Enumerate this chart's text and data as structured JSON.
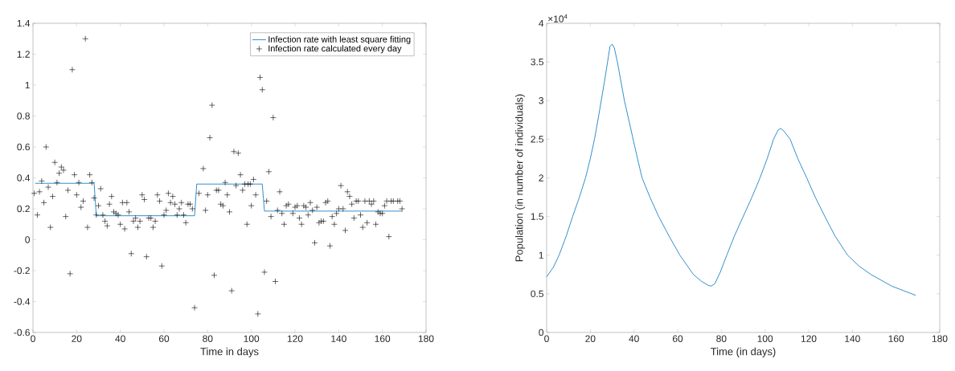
{
  "chart_data": [
    {
      "type": "scatter",
      "xlabel": "Time in days",
      "xlim": [
        0,
        180
      ],
      "xticks": [
        0,
        20,
        40,
        60,
        80,
        100,
        120,
        140,
        160,
        180
      ],
      "ylim": [
        -0.6,
        1.4
      ],
      "yticks": [
        -0.6,
        -0.4,
        -0.2,
        0,
        0.2,
        0.4,
        0.6,
        0.8,
        1,
        1.2,
        1.4
      ],
      "legend": "top right",
      "series": [
        {
          "name": "Infection rate with least square fitting",
          "type": "line",
          "color": "#0072bd",
          "marker": "none",
          "x": [
            1,
            28,
            29,
            74,
            75,
            105,
            106,
            169
          ],
          "values": [
            0.365,
            0.365,
            0.155,
            0.155,
            0.36,
            0.36,
            0.185,
            0.185
          ]
        },
        {
          "name": "Infection rate calculated every day",
          "type": "scatter",
          "color": "#000000",
          "marker": "cross",
          "x": [
            0.6,
            2,
            3,
            4,
            5,
            6,
            7,
            8,
            9,
            10,
            11,
            12,
            13,
            14,
            15,
            16,
            17,
            18,
            19,
            20,
            21,
            22,
            23,
            24,
            25,
            26,
            27,
            28,
            29,
            30,
            31,
            32,
            33,
            34,
            35,
            36,
            37,
            38,
            39,
            40,
            41,
            42,
            43,
            44,
            45,
            46,
            47,
            48,
            49,
            50,
            51,
            52,
            53,
            54,
            55,
            56,
            57,
            58,
            59,
            60,
            61,
            62,
            63,
            64,
            65,
            66,
            67,
            68,
            69,
            70,
            71,
            72,
            73,
            74,
            76,
            78,
            79,
            80,
            81,
            82,
            83,
            84,
            85,
            86,
            87,
            88,
            89,
            90,
            91,
            92,
            93,
            94,
            95,
            96,
            97,
            98,
            98.5,
            99.5,
            100,
            101,
            102,
            103,
            104,
            105,
            106,
            107,
            108,
            109,
            110,
            111,
            112,
            113,
            114,
            115,
            116,
            117,
            119,
            120,
            121,
            122,
            123,
            124,
            125,
            126,
            127,
            128,
            129,
            130,
            131,
            132,
            133,
            134,
            135,
            136,
            137,
            138,
            139,
            140,
            141,
            142,
            143,
            144,
            145,
            146,
            147,
            148,
            149,
            150,
            151,
            152,
            153,
            154,
            155,
            156,
            157,
            158,
            159,
            160,
            161,
            162,
            163,
            164,
            165,
            167,
            168,
            169
          ],
          "values": [
            0.3,
            0.16,
            0.31,
            0.38,
            0.24,
            0.6,
            0.34,
            0.08,
            0.28,
            0.5,
            0.37,
            0.43,
            0.47,
            0.45,
            0.15,
            0.32,
            -0.22,
            1.1,
            0.42,
            0.29,
            0.37,
            0.21,
            0.25,
            1.3,
            0.08,
            0.42,
            0.37,
            0.27,
            0.16,
            0.22,
            0.33,
            0.16,
            0.12,
            0.09,
            0.23,
            0.28,
            0.18,
            0.17,
            0.16,
            0.1,
            0.24,
            0.07,
            0.24,
            0.18,
            -0.09,
            0.12,
            0.14,
            0.08,
            0.12,
            0.29,
            0.26,
            -0.11,
            0.14,
            0.14,
            0.08,
            0.12,
            0.29,
            0.25,
            -0.17,
            0.16,
            0.19,
            0.3,
            0.24,
            0.28,
            0.23,
            0.16,
            0.2,
            0.24,
            0.16,
            0.11,
            0.23,
            0.23,
            0.2,
            -0.44,
            0.3,
            0.46,
            0.19,
            0.29,
            0.66,
            0.87,
            -0.23,
            0.32,
            0.32,
            0.23,
            0.22,
            0.37,
            0.29,
            0.18,
            -0.33,
            0.57,
            0.35,
            0.56,
            0.42,
            0.32,
            0.36,
            0.1,
            0.36,
            0.36,
            0.22,
            0.39,
            0.29,
            -0.48,
            1.05,
            0.97,
            -0.21,
            0.25,
            0.44,
            0.15,
            0.79,
            -0.27,
            0.19,
            0.31,
            0.17,
            0.1,
            0.22,
            0.23,
            0.17,
            0.21,
            0.22,
            0.14,
            0.1,
            0.22,
            0.21,
            0.16,
            0.24,
            0.19,
            -0.02,
            0.21,
            0.11,
            0.12,
            0.12,
            0.24,
            0.25,
            -0.04,
            0.15,
            0.1,
            0.17,
            0.2,
            0.35,
            0.2,
            0.06,
            0.31,
            0.28,
            0.23,
            0.14,
            0.25,
            0.25,
            0.16,
            0.08,
            0.25,
            0.11,
            0.25,
            0.23,
            0.25,
            0.1,
            0.18,
            0.17,
            0.17,
            0.22,
            0.25,
            0.02,
            0.25,
            0.25,
            0.25,
            0.25,
            0.2
          ]
        }
      ]
    },
    {
      "type": "line",
      "xlabel": "Time (in days)",
      "ylabel": "Population (in number of individuals)",
      "annotations": [
        "×10$^{4}$"
      ],
      "xlim": [
        0,
        180
      ],
      "xticks": [
        0,
        20,
        40,
        60,
        80,
        100,
        120,
        140,
        160,
        180
      ],
      "ylim": [
        0,
        4
      ],
      "yticks": [
        0,
        0.5,
        1,
        1.5,
        2,
        2.5,
        3,
        3.5,
        4
      ],
      "series": [
        {
          "color": "#0072bd",
          "x": [
            0,
            3,
            5.7,
            9,
            11.9,
            15,
            17.8,
            20,
            21.9,
            23.5,
            25,
            26.5,
            27.9,
            29,
            30,
            31,
            32.4,
            34,
            35.6,
            37.6,
            39.6,
            41.6,
            43.7,
            47.3,
            51.3,
            56,
            61,
            67.2,
            71,
            74,
            75.3,
            77,
            79.5,
            82.5,
            86,
            90,
            94,
            97.7,
            101,
            103.9,
            106,
            107.1,
            108.5,
            111.5,
            115,
            119.1,
            123,
            127.4,
            132,
            137.8,
            143,
            148.5,
            158,
            169
          ],
          "values": [
            0.72,
            0.84,
            1,
            1.25,
            1.5,
            1.75,
            2,
            2.25,
            2.5,
            2.75,
            3,
            3.25,
            3.5,
            3.7,
            3.73,
            3.68,
            3.5,
            3.25,
            3,
            2.75,
            2.5,
            2.25,
            2,
            1.75,
            1.5,
            1.25,
            1,
            0.75,
            0.66,
            0.61,
            0.6,
            0.63,
            0.78,
            1,
            1.25,
            1.5,
            1.75,
            2,
            2.25,
            2.5,
            2.62,
            2.64,
            2.61,
            2.5,
            2.25,
            2,
            1.75,
            1.5,
            1.25,
            1,
            0.86,
            0.75,
            0.6,
            0.48
          ]
        }
      ]
    }
  ]
}
